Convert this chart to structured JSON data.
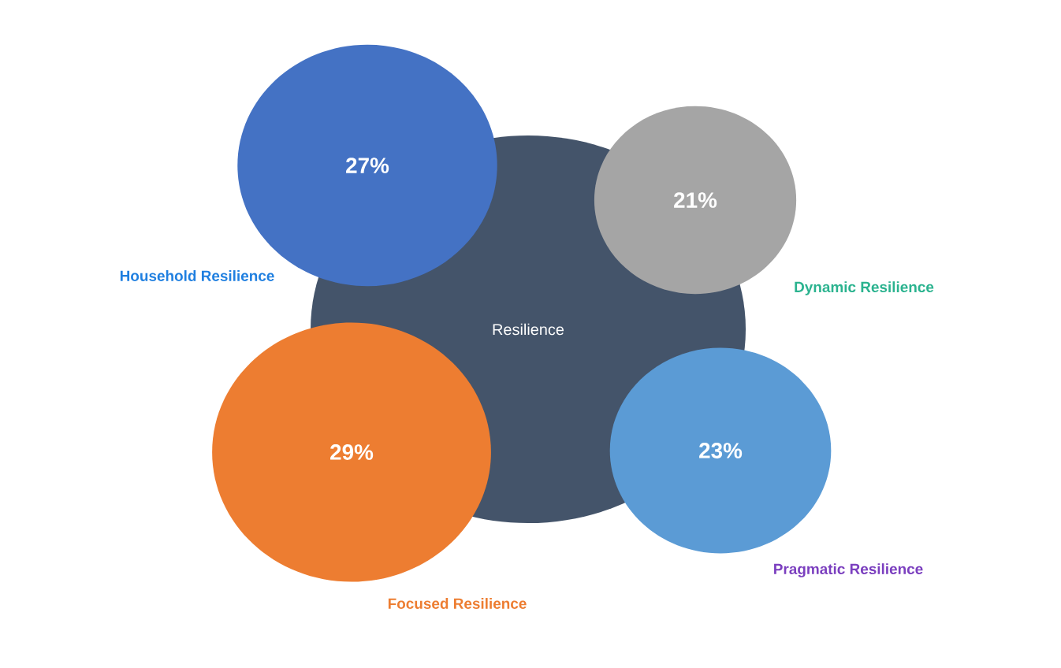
{
  "chart_data": {
    "type": "other",
    "categories": [
      "Household Resilience",
      "Dynamic Resilience",
      "Focused Resilience",
      "Pragmatic Resilience"
    ],
    "values": [
      27,
      21,
      29,
      23
    ],
    "value_labels": [
      "27%",
      "21%",
      "29%",
      "23%"
    ],
    "colors": [
      "#4472c4",
      "#a5a5a5",
      "#ed7d31",
      "#5b9bd5"
    ],
    "annotations": [
      "Resilience"
    ]
  }
}
